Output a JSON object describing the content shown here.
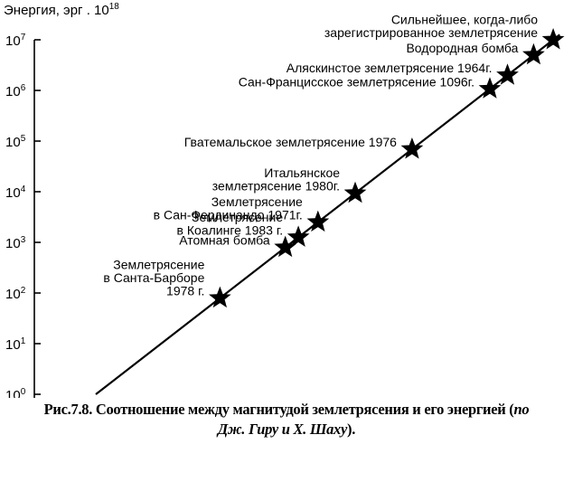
{
  "chart_data": {
    "type": "scatter",
    "title": "",
    "ylabel": "Энергия, эрг . 10",
    "ylabel_exp": "18",
    "yscale": "log",
    "ylim": [
      1,
      10000000
    ],
    "grid": false,
    "y_ticks": [
      {
        "base": "10",
        "exp": "0"
      },
      {
        "base": "10",
        "exp": "1"
      },
      {
        "base": "10",
        "exp": "2"
      },
      {
        "base": "10",
        "exp": "3"
      },
      {
        "base": "10",
        "exp": "4"
      },
      {
        "base": "10",
        "exp": "5"
      },
      {
        "base": "10",
        "exp": "6"
      },
      {
        "base": "10",
        "exp": "7"
      }
    ],
    "trend_line": {
      "from_log10_energy": 0,
      "to_log10_energy": 7.1
    },
    "points": [
      {
        "log10_energy": 1.9,
        "lines": [
          "Землетрясение",
          "в Санта-Барборе",
          "1978 г."
        ]
      },
      {
        "log10_energy": 2.9,
        "lines": [
          "Атомная бомба"
        ]
      },
      {
        "log10_energy": 3.1,
        "lines": [
          "Землетрясение",
          "в Коалинге 1983 г."
        ]
      },
      {
        "log10_energy": 3.4,
        "lines": [
          "Землетрясение",
          "в Сан-Фердинандо 1971г."
        ]
      },
      {
        "log10_energy": 3.97,
        "lines": [
          "Итальянское",
          "землетрясение 1980г."
        ]
      },
      {
        "log10_energy": 4.84,
        "lines": [
          "Гватемальское землетрясение 1976"
        ]
      },
      {
        "log10_energy": 6.03,
        "lines": [
          "Сан-Францисское землетрясение 1096г."
        ]
      },
      {
        "log10_energy": 6.3,
        "lines": [
          "Аляскинстое землетрясение 1964г."
        ]
      },
      {
        "log10_energy": 6.7,
        "lines": [
          "Водородная бомба"
        ]
      },
      {
        "log10_energy": 7.0,
        "lines": [
          "Сильнейшее, когда-либо",
          "зарегистрированное землетрясение"
        ]
      }
    ]
  },
  "caption": {
    "main": "Рис.7.8. Соотношение между магнитудой землетрясения и его энергией (",
    "authors_1": "по",
    "authors_2": "Дж. Гиру и Х. Шаху",
    "end": ")."
  }
}
